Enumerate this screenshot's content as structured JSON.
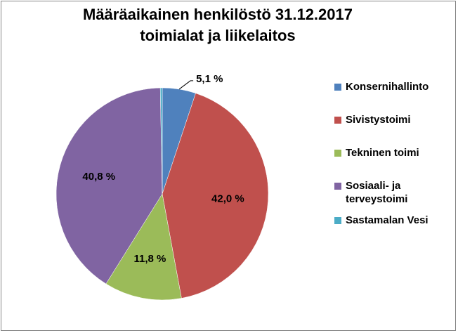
{
  "chart_data": {
    "type": "pie",
    "title": "Määräaikainen henkilöstö 31.12.2017",
    "subtitle": "toimialat ja liikelaitos",
    "categories": [
      "Konsernihallinto",
      "Sivistystoimi",
      "Tekninen toimi",
      "Sosiaali- ja terveystoimi",
      "Sastamalan Vesi"
    ],
    "values": [
      5.1,
      42.0,
      11.8,
      40.8,
      0.3
    ],
    "data_labels": [
      "5,1 %",
      "42,0 %",
      "11,8 %",
      "40,8 %",
      ""
    ],
    "colors": [
      "#4F81BD",
      "#C0504D",
      "#9BBB59",
      "#8064A2",
      "#4BACC6"
    ],
    "legend_position": "right"
  }
}
